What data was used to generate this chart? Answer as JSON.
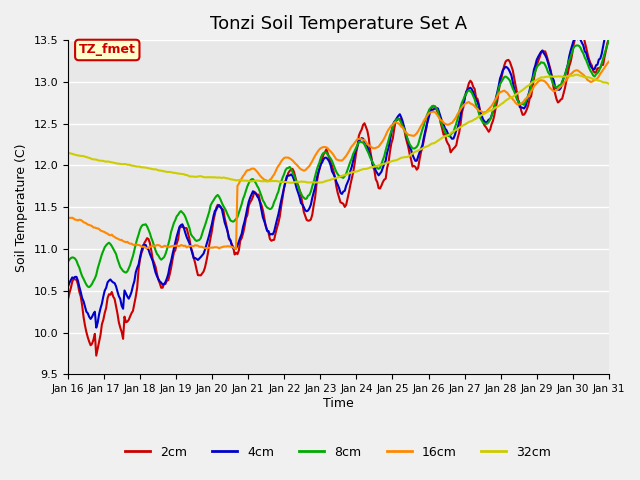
{
  "title": "Tonzi Soil Temperature Set A",
  "xlabel": "Time",
  "ylabel": "Soil Temperature (C)",
  "ylim": [
    9.5,
    13.5
  ],
  "xtick_labels": [
    "Jan 16",
    "Jan 17",
    "Jan 18",
    "Jan 19",
    "Jan 20",
    "Jan 21",
    "Jan 22",
    "Jan 23",
    "Jan 24",
    "Jan 25",
    "Jan 26",
    "Jan 27",
    "Jan 28",
    "Jan 29",
    "Jan 30",
    "Jan 31"
  ],
  "background_color": "#e8e8e8",
  "plot_bg_color": "#e8e8e8",
  "legend_label": "TZ_fmet",
  "legend_bg": "#ffffcc",
  "legend_border": "#cc0000",
  "series": {
    "2cm": {
      "color": "#cc0000",
      "lw": 1.5
    },
    "4cm": {
      "color": "#0000cc",
      "lw": 1.5
    },
    "8cm": {
      "color": "#00aa00",
      "lw": 1.5
    },
    "16cm": {
      "color": "#ff8800",
      "lw": 1.5
    },
    "32cm": {
      "color": "#cccc00",
      "lw": 1.5
    }
  }
}
